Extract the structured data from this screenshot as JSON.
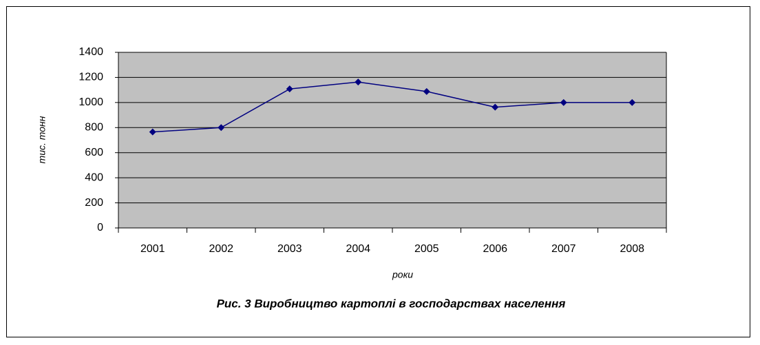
{
  "chart_data": {
    "type": "line",
    "caption": "Рис. 3 Виробництво картоплі в господарствах населення",
    "x_label": "роки",
    "y_label": "тис. тонн",
    "categories": [
      "2001",
      "2002",
      "2003",
      "2004",
      "2005",
      "2006",
      "2007",
      "2008"
    ],
    "series": [
      {
        "color": "#000080",
        "values": [
          765,
          800,
          1108,
          1163,
          1088,
          963,
          1000,
          1000
        ]
      }
    ],
    "ylim": [
      0,
      1400
    ],
    "yticks": [
      0,
      200,
      400,
      600,
      800,
      1000,
      1200,
      1400
    ],
    "grid": true,
    "plot_background": "#c0c0c0"
  }
}
